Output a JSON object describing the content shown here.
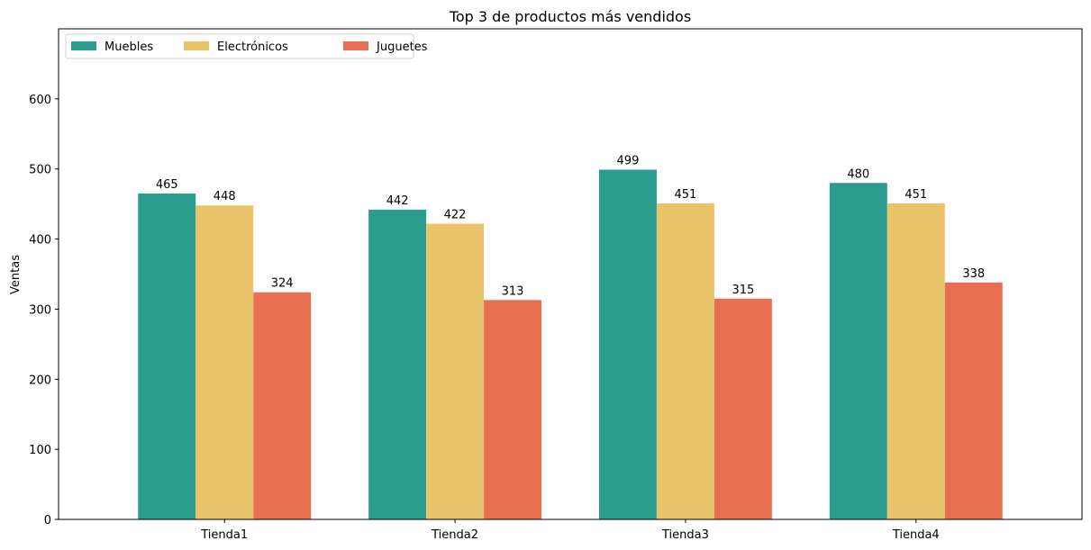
{
  "chart_data": {
    "type": "bar",
    "title": "Top 3 de productos más vendidos",
    "xlabel": "",
    "ylabel": "Ventas",
    "categories": [
      "Tienda1",
      "Tienda2",
      "Tienda3",
      "Tienda4"
    ],
    "series": [
      {
        "name": "Muebles",
        "color": "#2a9d8f",
        "values": [
          465,
          442,
          499,
          480
        ]
      },
      {
        "name": "Electrónicos",
        "color": "#e9c46a",
        "values": [
          448,
          422,
          451,
          451
        ]
      },
      {
        "name": "Juguetes",
        "color": "#e76f51",
        "values": [
          324,
          313,
          315,
          338
        ]
      }
    ],
    "ylim": [
      0,
      700
    ],
    "yticks": [
      0,
      100,
      200,
      300,
      400,
      500,
      600
    ],
    "grid": false,
    "legend_position": "top-left"
  }
}
